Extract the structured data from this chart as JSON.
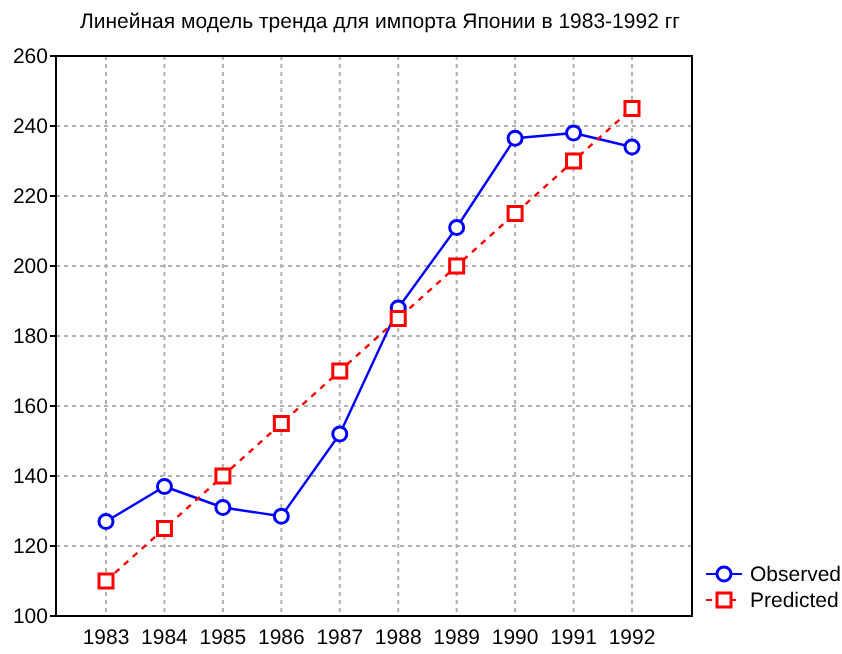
{
  "chart_data": {
    "type": "line",
    "title": "Линейная модель тренда для импорта Японии в 1983-1992 гг",
    "categories": [
      "1983",
      "1984",
      "1985",
      "1986",
      "1987",
      "1988",
      "1989",
      "1990",
      "1991",
      "1992"
    ],
    "series": [
      {
        "name": "Observed",
        "color": "#0000ff",
        "marker": "circle",
        "line_style": "solid",
        "values": [
          127,
          137,
          131,
          128.5,
          152,
          188,
          211,
          236.5,
          238,
          234
        ]
      },
      {
        "name": "Predicted",
        "color": "#ff0000",
        "marker": "square",
        "line_style": "dashed",
        "values": [
          110,
          125,
          140,
          155,
          170,
          185,
          200,
          215,
          230,
          245
        ]
      }
    ],
    "ylim": [
      100,
      260
    ],
    "yticks": [
      100,
      120,
      140,
      160,
      180,
      200,
      220,
      240,
      260
    ],
    "grid": true,
    "legend": "bottom right"
  }
}
